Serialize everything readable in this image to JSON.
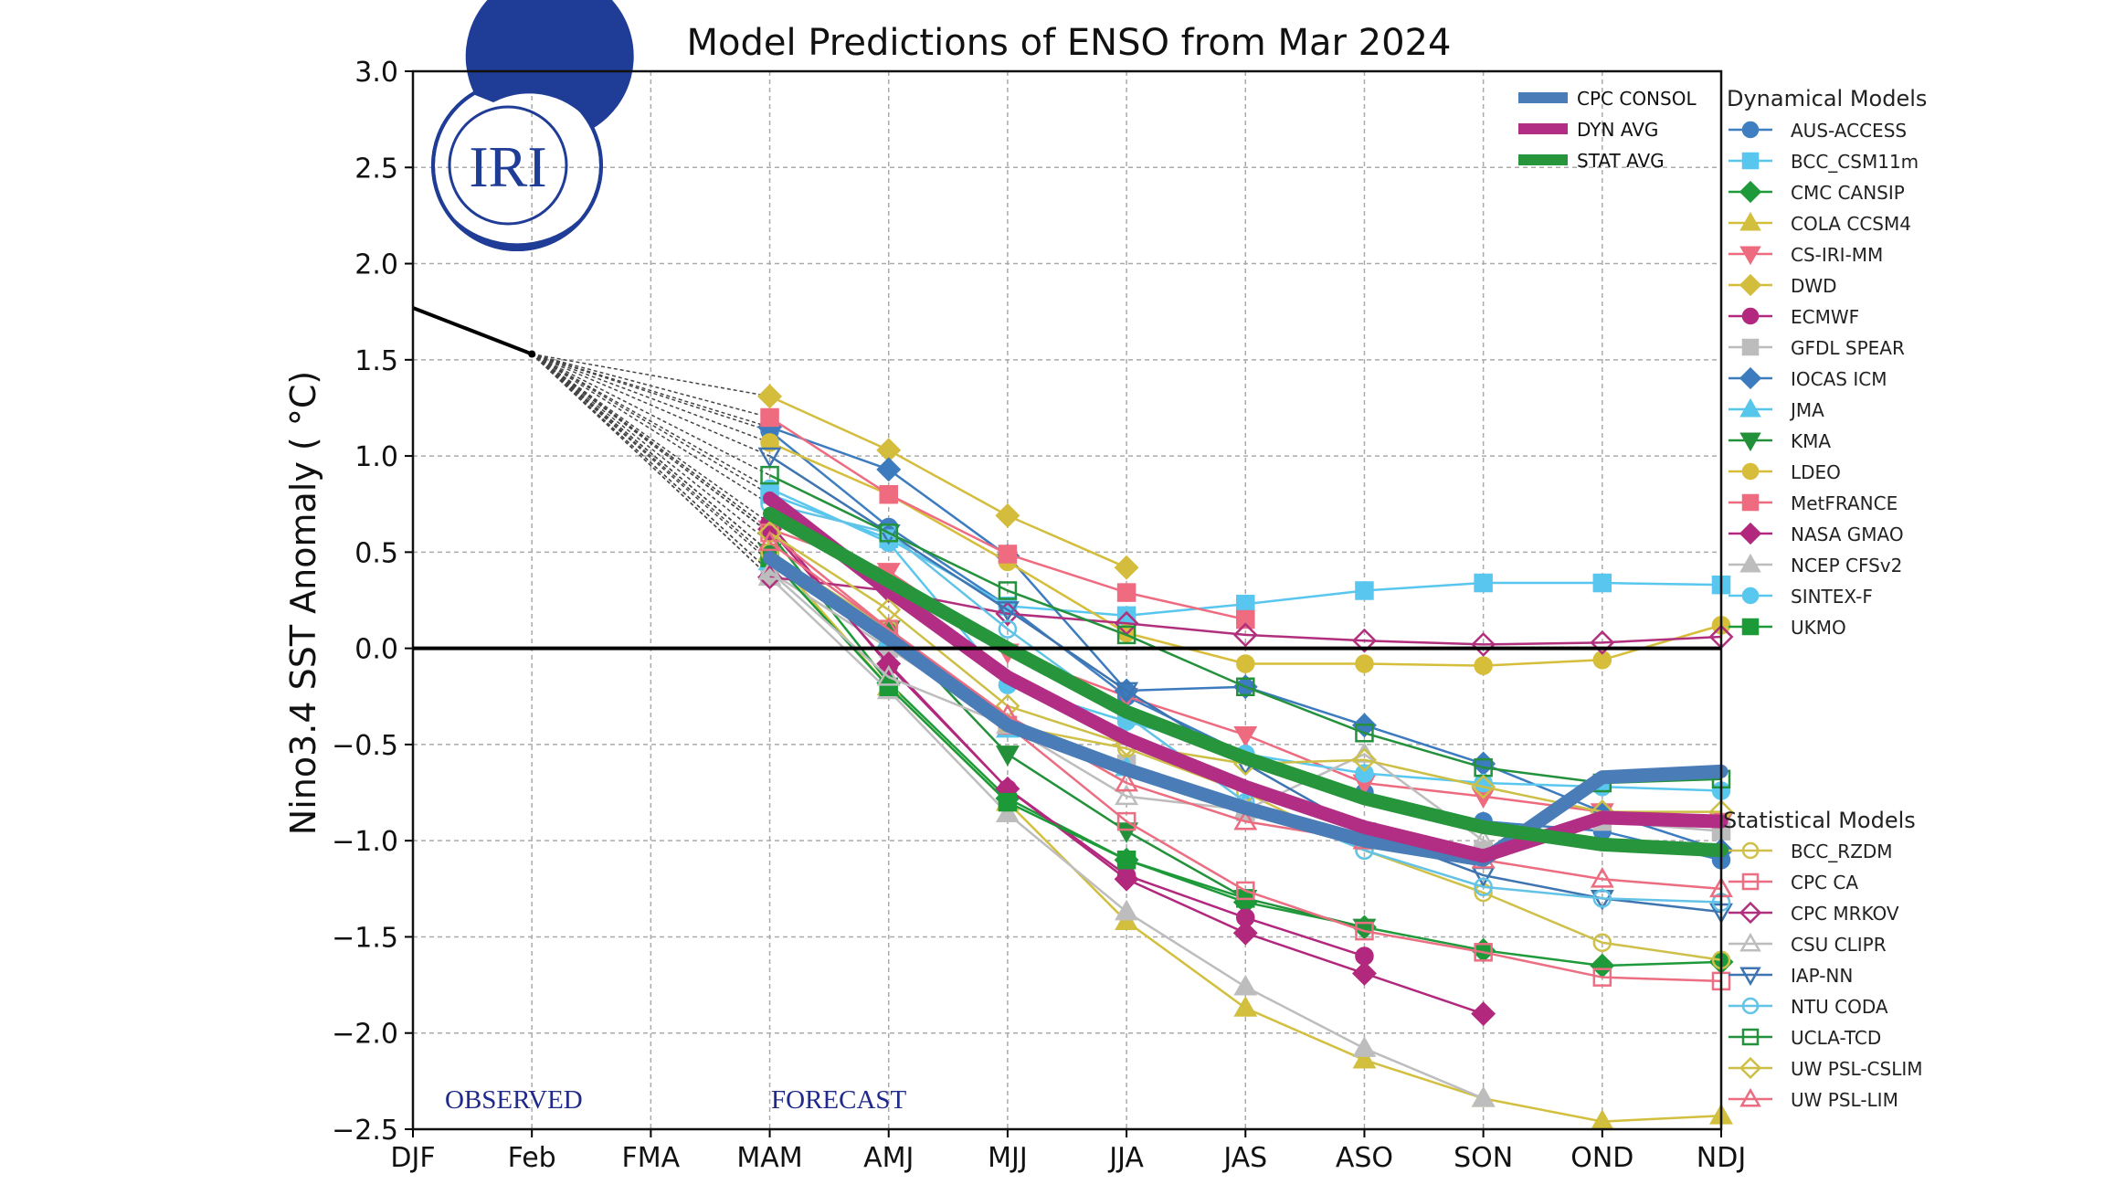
{
  "chart_data": {
    "type": "line",
    "title": "Model Predictions of ENSO from Mar 2024",
    "xlabel": "",
    "ylabel": "Nino3.4 SST Anomaly ( °C)",
    "ylim": [
      -2.5,
      3.0
    ],
    "yticks": [
      "3.0",
      "2.5",
      "2.0",
      "1.5",
      "1.0",
      "0.5",
      "0.0",
      "−0.5",
      "−1.0",
      "−1.5",
      "−2.0",
      "−2.5"
    ],
    "categories": [
      "DJF",
      "Feb",
      "FMA",
      "MAM",
      "AMJ",
      "MJJ",
      "JJA",
      "JAS",
      "ASO",
      "SON",
      "OND",
      "NDJ"
    ],
    "grid": true,
    "annotations": {
      "observed": "OBSERVED",
      "forecast": "FORECAST"
    },
    "logo_text": "IRI",
    "observed": {
      "x": [
        "DJF",
        "Feb"
      ],
      "values": [
        1.77,
        1.53
      ],
      "color": "#000000"
    },
    "forecast_start": "MAM",
    "averages": [
      {
        "name": "CPC CONSOL",
        "color": "#4a7cb8",
        "values": [
          0.47,
          0.05,
          -0.4,
          -0.63,
          -0.83,
          -1.0,
          -1.1,
          -0.67,
          -0.64
        ]
      },
      {
        "name": "DYN AVG",
        "color": "#b22d84",
        "values": [
          0.78,
          0.3,
          -0.15,
          -0.47,
          -0.72,
          -0.93,
          -1.08,
          -0.88,
          -0.9
        ]
      },
      {
        "name": "STAT AVG",
        "color": "#27953b",
        "values": [
          0.7,
          0.35,
          0.0,
          -0.33,
          -0.57,
          -0.78,
          -0.93,
          -1.02,
          -1.05
        ]
      }
    ],
    "legend_dynamical_title": "Dynamical Models",
    "legend_statistical_title": "Statistical Models",
    "dynamical": [
      {
        "name": "AUS-ACCESS",
        "color": "#3f7fc1",
        "marker": "circle",
        "values": [
          1.13,
          0.63,
          0.22,
          -0.25,
          -0.55,
          -0.75,
          -0.9,
          -0.95,
          -1.1
        ]
      },
      {
        "name": "BCC_CSM11m",
        "color": "#58c6ee",
        "marker": "square",
        "values": [
          0.8,
          0.57,
          0.22,
          0.17,
          0.23,
          0.3,
          0.34,
          0.34,
          0.33
        ]
      },
      {
        "name": "CMC CANSIP",
        "color": "#1f9a3a",
        "marker": "diamond",
        "values": [
          0.6,
          -0.18,
          -0.78,
          -1.1,
          -1.32,
          -1.45,
          -1.57,
          -1.65,
          -1.63
        ]
      },
      {
        "name": "COLA CCSM4",
        "color": "#d2bf3e",
        "marker": "triangle-up",
        "values": [
          0.5,
          -0.2,
          -0.8,
          -1.42,
          -1.87,
          -2.14,
          -2.34,
          -2.46,
          -2.43
        ]
      },
      {
        "name": "CS-IRI-MM",
        "color": "#ee6b7f",
        "marker": "triangle-down",
        "values": [
          0.62,
          0.4,
          -0.02,
          -0.25,
          -0.45,
          -0.7,
          -0.77,
          -0.85,
          -0.9
        ]
      },
      {
        "name": "DWD",
        "color": "#d4bd3c",
        "marker": "diamond",
        "values": [
          1.31,
          1.03,
          0.69,
          0.42
        ]
      },
      {
        "name": "ECMWF",
        "color": "#b3287f",
        "marker": "circle",
        "values": [
          0.65,
          -0.09,
          -0.73,
          -1.18,
          -1.4,
          -1.6
        ]
      },
      {
        "name": "GFDL SPEAR",
        "color": "#bcbcbc",
        "marker": "square",
        "values": [
          0.4,
          0.0,
          -0.4,
          -0.6,
          -0.85,
          -1.0,
          -1.05,
          -0.9,
          -0.95
        ]
      },
      {
        "name": "IOCAS ICM",
        "color": "#3d7bbf",
        "marker": "diamond",
        "values": [
          1.15,
          0.93,
          0.48,
          -0.22,
          -0.2,
          -0.4,
          -0.6,
          -0.85,
          -1.05
        ]
      },
      {
        "name": "JMA",
        "color": "#56c6ea",
        "marker": "triangle-up",
        "values": [
          0.45,
          0.05,
          -0.42,
          -0.62,
          -0.8
        ]
      },
      {
        "name": "KMA",
        "color": "#22913a",
        "marker": "triangle-down",
        "values": [
          0.5,
          0.1,
          -0.55,
          -0.95,
          -1.3,
          -1.45
        ]
      },
      {
        "name": "LDEO",
        "color": "#d6bd3a",
        "marker": "circle",
        "values": [
          1.07,
          0.8,
          0.45,
          0.08,
          -0.08,
          -0.08,
          -0.09,
          -0.06,
          0.12
        ]
      },
      {
        "name": "MetFRANCE",
        "color": "#ef6b80",
        "marker": "square",
        "values": [
          1.2,
          0.8,
          0.49,
          0.29,
          0.15
        ]
      },
      {
        "name": "NASA GMAO",
        "color": "#b1287d",
        "marker": "diamond",
        "values": [
          0.62,
          -0.08,
          -0.73,
          -1.2,
          -1.48,
          -1.69,
          -1.9
        ]
      },
      {
        "name": "NCEP CFSv2",
        "color": "#bdbdbd",
        "marker": "triangle-up",
        "values": [
          0.37,
          -0.22,
          -0.86,
          -1.37,
          -1.76,
          -2.08,
          -2.34
        ]
      },
      {
        "name": "SINTEX-F",
        "color": "#5ac7ef",
        "marker": "circle",
        "values": [
          0.83,
          0.55,
          -0.19,
          -0.38,
          -0.55,
          -0.65,
          -0.7,
          -0.72,
          -0.74
        ]
      },
      {
        "name": "UKMO",
        "color": "#1d9a38",
        "marker": "square",
        "values": [
          0.47,
          -0.2,
          -0.8,
          -1.1,
          -1.3
        ]
      }
    ],
    "statistical": [
      {
        "name": "BCC_RZDM",
        "color": "#cfc04a",
        "marker": "circle",
        "values": [
          0.5,
          0.1,
          -0.4,
          -0.52,
          -0.75,
          -1.05,
          -1.27,
          -1.53,
          -1.62
        ]
      },
      {
        "name": "CPC CA",
        "color": "#eb6e82",
        "marker": "square",
        "values": [
          0.6,
          0.1,
          -0.4,
          -0.9,
          -1.26,
          -1.47,
          -1.58,
          -1.71,
          -1.73
        ]
      },
      {
        "name": "CPC MRKOV",
        "color": "#b1307e",
        "marker": "diamond",
        "values": [
          0.37,
          0.3,
          0.18,
          0.13,
          0.07,
          0.04,
          0.02,
          0.03,
          0.06
        ]
      },
      {
        "name": "CSU CLIPR",
        "color": "#bdbdbd",
        "marker": "triangle-up",
        "values": [
          0.4,
          -0.15,
          -0.4,
          -0.77,
          -0.84,
          -0.55,
          -1.0
        ]
      },
      {
        "name": "IAP-NN",
        "color": "#3e74b0",
        "marker": "triangle-down",
        "values": [
          1.0,
          0.6,
          0.2,
          -0.22,
          -0.6,
          -0.95,
          -1.18,
          -1.3,
          -1.37
        ]
      },
      {
        "name": "NTU CODA",
        "color": "#62c3e6",
        "marker": "circle",
        "values": [
          0.75,
          0.6,
          0.1,
          -0.35,
          -0.8,
          -1.05,
          -1.24,
          -1.3,
          -1.32
        ]
      },
      {
        "name": "UCLA-TCD",
        "color": "#24913c",
        "marker": "square",
        "values": [
          0.9,
          0.6,
          0.3,
          0.07,
          -0.2,
          -0.44,
          -0.62,
          -0.7,
          -0.68
        ]
      },
      {
        "name": "UW PSL-CSLIM",
        "color": "#cdbf46",
        "marker": "diamond",
        "values": [
          0.6,
          0.2,
          -0.3,
          -0.5,
          -0.6,
          -0.58,
          -0.72,
          -0.85,
          -0.85
        ]
      },
      {
        "name": "UW PSL-LIM",
        "color": "#ec6c80",
        "marker": "triangle-up",
        "values": [
          0.55,
          0.1,
          -0.35,
          -0.7,
          -0.9,
          -1.0,
          -1.1,
          -1.2,
          -1.25
        ]
      }
    ]
  }
}
